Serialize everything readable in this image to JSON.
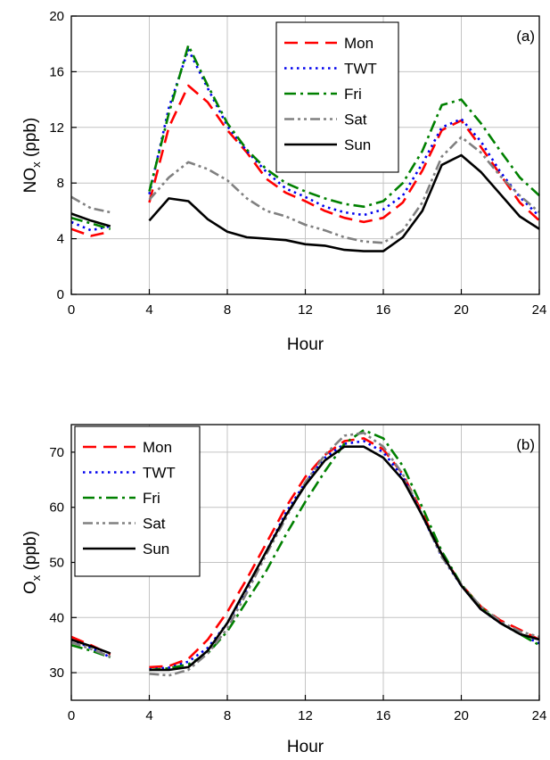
{
  "chart_data": [
    {
      "type": "line",
      "panel_label": "(a)",
      "ylabel_main": "NO",
      "ylabel_sub": "x",
      "ylabel_unit": " (ppb)",
      "xlabel": "Hour",
      "xlim": [
        0,
        24
      ],
      "ylim": [
        0,
        20
      ],
      "xticks": [
        0,
        4,
        8,
        12,
        16,
        20,
        24
      ],
      "yticks": [
        0,
        4,
        8,
        12,
        16,
        20
      ],
      "grid": true,
      "legend_position": "top-right",
      "series": [
        {
          "name": "Mon",
          "color": "#ff0000",
          "dash": "dashed",
          "segments": [
            {
              "x": [
                0,
                1,
                2
              ],
              "y": [
                4.7,
                4.2,
                4.5
              ]
            },
            {
              "x": [
                4,
                5,
                6,
                7,
                8,
                9,
                10,
                11,
                12,
                13,
                14,
                15,
                16,
                17,
                18,
                19,
                20,
                21,
                22,
                23,
                24
              ],
              "y": [
                6.6,
                12.0,
                15.0,
                13.8,
                11.8,
                10.2,
                8.3,
                7.3,
                6.7,
                6.0,
                5.5,
                5.2,
                5.5,
                6.6,
                8.9,
                11.8,
                12.5,
                10.6,
                8.6,
                6.6,
                5.3
              ]
            }
          ]
        },
        {
          "name": "TWT",
          "color": "#0000ee",
          "dash": "dotted",
          "segments": [
            {
              "x": [
                0,
                1,
                2
              ],
              "y": [
                5.2,
                4.6,
                4.9
              ]
            },
            {
              "x": [
                4,
                5,
                6,
                7,
                8,
                9,
                10,
                11,
                12,
                13,
                14,
                15,
                16,
                17,
                18,
                19,
                20,
                21,
                22,
                23,
                24
              ],
              "y": [
                7.2,
                13.4,
                17.6,
                14.8,
                12.1,
                10.3,
                8.8,
                7.6,
                7.0,
                6.3,
                5.9,
                5.7,
                6.1,
                7.1,
                9.4,
                12.0,
                12.6,
                11.0,
                8.8,
                7.0,
                5.6
              ]
            }
          ]
        },
        {
          "name": "Fri",
          "color": "#008000",
          "dash": "dashdot",
          "segments": [
            {
              "x": [
                0,
                1,
                2
              ],
              "y": [
                5.5,
                5.1,
                4.7
              ]
            },
            {
              "x": [
                4,
                5,
                6,
                7,
                8,
                9,
                10,
                11,
                12,
                13,
                14,
                15,
                16,
                17,
                18,
                19,
                20,
                21,
                22,
                23,
                24
              ],
              "y": [
                7.4,
                13.0,
                17.9,
                15.0,
                12.3,
                10.4,
                9.0,
                8.0,
                7.4,
                6.9,
                6.5,
                6.3,
                6.7,
                8.0,
                10.3,
                13.6,
                14.0,
                12.3,
                10.3,
                8.4,
                7.1
              ]
            }
          ]
        },
        {
          "name": "Sat",
          "color": "#808080",
          "dash": "dashdotdot",
          "segments": [
            {
              "x": [
                0,
                1,
                2
              ],
              "y": [
                7.0,
                6.2,
                5.9
              ]
            },
            {
              "x": [
                4,
                5,
                6,
                7,
                8,
                9,
                10,
                11,
                12,
                13,
                14,
                15,
                16,
                17,
                18,
                19,
                20,
                21,
                22,
                23,
                24
              ],
              "y": [
                6.8,
                8.4,
                9.5,
                9.0,
                8.2,
                6.9,
                6.0,
                5.6,
                5.0,
                4.6,
                4.1,
                3.8,
                3.7,
                4.6,
                6.6,
                9.9,
                11.3,
                10.2,
                8.5,
                7.1,
                5.9
              ]
            }
          ]
        },
        {
          "name": "Sun",
          "color": "#000000",
          "dash": "solid",
          "segments": [
            {
              "x": [
                0,
                1,
                2
              ],
              "y": [
                5.8,
                5.3,
                4.9
              ]
            },
            {
              "x": [
                4,
                5,
                6,
                7,
                8,
                9,
                10,
                11,
                12,
                13,
                14,
                15,
                16,
                17,
                18,
                19,
                20,
                21,
                22,
                23,
                24
              ],
              "y": [
                5.3,
                6.9,
                6.7,
                5.4,
                4.5,
                4.1,
                4.0,
                3.9,
                3.6,
                3.5,
                3.2,
                3.1,
                3.1,
                4.1,
                6.0,
                9.3,
                10.0,
                8.8,
                7.2,
                5.6,
                4.7
              ]
            }
          ]
        }
      ]
    },
    {
      "type": "line",
      "panel_label": "(b)",
      "ylabel_main": "O",
      "ylabel_sub": "x",
      "ylabel_unit": " (ppb)",
      "xlabel": "Hour",
      "xlim": [
        0,
        24
      ],
      "ylim": [
        25,
        75
      ],
      "xticks": [
        0,
        4,
        8,
        12,
        16,
        20,
        24
      ],
      "yticks": [
        30,
        40,
        50,
        60,
        70
      ],
      "grid": true,
      "legend_position": "top-left",
      "series": [
        {
          "name": "Mon",
          "color": "#ff0000",
          "dash": "dashed",
          "segments": [
            {
              "x": [
                0,
                1,
                2
              ],
              "y": [
                36.5,
                35.0,
                33.3
              ]
            },
            {
              "x": [
                4,
                5,
                6,
                7,
                8,
                9,
                10,
                11,
                12,
                13,
                14,
                15,
                16,
                17,
                18,
                19,
                20,
                21,
                22,
                23,
                24
              ],
              "y": [
                31.0,
                31.2,
                32.5,
                36.0,
                41.0,
                47.0,
                53.5,
                60.0,
                65.5,
                69.5,
                72.0,
                72.5,
                70.5,
                66.0,
                59.0,
                51.5,
                46.0,
                42.0,
                39.5,
                37.8,
                36.0
              ]
            }
          ]
        },
        {
          "name": "TWT",
          "color": "#0000ee",
          "dash": "dotted",
          "segments": [
            {
              "x": [
                0,
                1,
                2
              ],
              "y": [
                36.0,
                34.5,
                32.8
              ]
            },
            {
              "x": [
                4,
                5,
                6,
                7,
                8,
                9,
                10,
                11,
                12,
                13,
                14,
                15,
                16,
                17,
                18,
                19,
                20,
                21,
                22,
                23,
                24
              ],
              "y": [
                30.6,
                30.9,
                32.0,
                34.5,
                39.0,
                45.0,
                52.0,
                59.0,
                64.5,
                69.0,
                71.5,
                72.0,
                70.0,
                65.5,
                58.5,
                51.0,
                45.8,
                41.5,
                39.0,
                37.0,
                35.3
              ]
            }
          ]
        },
        {
          "name": "Fri",
          "color": "#008000",
          "dash": "dashdot",
          "segments": [
            {
              "x": [
                0,
                1,
                2
              ],
              "y": [
                35.0,
                34.0,
                32.8
              ]
            },
            {
              "x": [
                4,
                5,
                6,
                7,
                8,
                9,
                10,
                11,
                12,
                13,
                14,
                15,
                16,
                17,
                18,
                19,
                20,
                21,
                22,
                23,
                24
              ],
              "y": [
                30.5,
                30.8,
                31.5,
                33.5,
                37.5,
                43.0,
                48.5,
                55.0,
                61.0,
                66.5,
                71.5,
                74.0,
                72.5,
                67.5,
                60.0,
                52.0,
                46.0,
                41.8,
                39.0,
                37.0,
                35.0
              ]
            }
          ]
        },
        {
          "name": "Sat",
          "color": "#808080",
          "dash": "dashdotdot",
          "segments": [
            {
              "x": [
                0,
                1,
                2
              ],
              "y": [
                35.5,
                34.3,
                32.9
              ]
            },
            {
              "x": [
                4,
                5,
                6,
                7,
                8,
                9,
                10,
                11,
                12,
                13,
                14,
                15,
                16,
                17,
                18,
                19,
                20,
                21,
                22,
                23,
                24
              ],
              "y": [
                29.8,
                29.5,
                30.5,
                33.5,
                38.0,
                44.5,
                51.5,
                58.0,
                64.5,
                69.5,
                73.0,
                73.5,
                71.0,
                66.0,
                58.5,
                51.0,
                46.0,
                42.0,
                39.3,
                37.5,
                36.5
              ]
            }
          ]
        },
        {
          "name": "Sun",
          "color": "#000000",
          "dash": "solid",
          "segments": [
            {
              "x": [
                0,
                1,
                2
              ],
              "y": [
                36.0,
                34.8,
                33.5
              ]
            },
            {
              "x": [
                4,
                5,
                6,
                7,
                8,
                9,
                10,
                11,
                12,
                13,
                14,
                15,
                16,
                17,
                18,
                19,
                20,
                21,
                22,
                23,
                24
              ],
              "y": [
                30.5,
                30.5,
                31.0,
                34.0,
                39.0,
                45.5,
                52.0,
                58.5,
                64.0,
                68.5,
                71.0,
                71.0,
                69.0,
                65.0,
                58.5,
                51.5,
                45.8,
                41.5,
                39.0,
                37.0,
                36.0
              ]
            }
          ]
        }
      ]
    }
  ]
}
